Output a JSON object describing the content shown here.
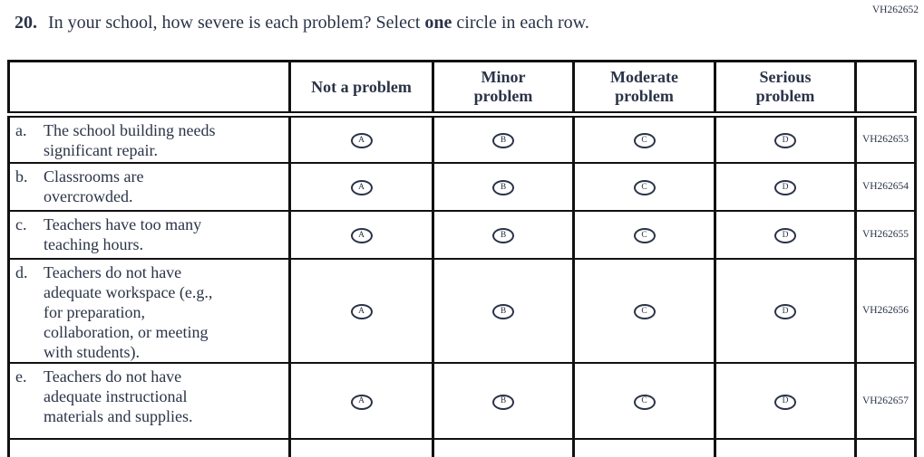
{
  "question": {
    "number": "20.",
    "text_before_bold": "In your school, how severe is each problem? Select ",
    "bold_word": "one",
    "text_after_bold": " circle in each row."
  },
  "top_right_code": "VH262652",
  "table": {
    "headers": [
      {
        "line1": "Not a problem",
        "line2": ""
      },
      {
        "line1": "Minor",
        "line2": "problem"
      },
      {
        "line1": "Moderate",
        "line2": "problem"
      },
      {
        "line1": "Serious",
        "line2": "problem"
      }
    ],
    "options": [
      "A",
      "B",
      "C",
      "D"
    ],
    "rows": [
      {
        "letter": "a.",
        "text": "The school building needs\nsignificant repair.",
        "code": "VH262653"
      },
      {
        "letter": "b.",
        "text": "Classrooms are\novercrowded.",
        "code": "VH262654"
      },
      {
        "letter": "c.",
        "text": "Teachers have too many\nteaching hours.",
        "code": "VH262655"
      },
      {
        "letter": "d.",
        "text": "Teachers do not have\nadequate workspace (e.g.,\nfor preparation,\ncollaboration, or meeting\nwith students).",
        "code": "VH262656"
      },
      {
        "letter": "e.",
        "text": "Teachers do not have\nadequate instructional\nmaterials and supplies.",
        "code": "VH262657"
      }
    ]
  },
  "colors": {
    "text": "#2a3347",
    "border": "#111111",
    "background": "#ffffff"
  }
}
